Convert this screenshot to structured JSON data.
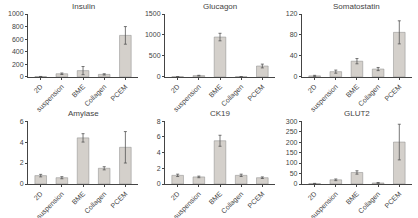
{
  "chart_data": [
    {
      "type": "bar",
      "title": "Insulin",
      "categories": [
        "2D",
        "suspension",
        "BME",
        "Collagen",
        "PCEM"
      ],
      "values": [
        5,
        50,
        100,
        40,
        660
      ],
      "errors": [
        2,
        12,
        65,
        10,
        140
      ],
      "ylim": [
        0,
        1000
      ],
      "yticks": [
        0,
        200,
        400,
        600,
        800,
        1000
      ],
      "color": "#d4d0cb",
      "grid": false
    },
    {
      "type": "bar",
      "title": "Glucagon",
      "categories": [
        "2D",
        "suspension",
        "BME",
        "Collagen",
        "PCEM"
      ],
      "values": [
        5,
        30,
        950,
        5,
        260
      ],
      "errors": [
        2,
        8,
        90,
        2,
        45
      ],
      "ylim": [
        0,
        1500
      ],
      "yticks": [
        0,
        500,
        1000,
        1500
      ],
      "color": "#d4d0cb",
      "grid": false
    },
    {
      "type": "bar",
      "title": "Somatostatin",
      "categories": [
        "2D",
        "suspension",
        "BME",
        "Collagen",
        "PCEM"
      ],
      "values": [
        2,
        10,
        30,
        15,
        85
      ],
      "errors": [
        1,
        3,
        5,
        3,
        22
      ],
      "ylim": [
        0,
        120
      ],
      "yticks": [
        0,
        40,
        80,
        120
      ],
      "color": "#d4d0cb",
      "grid": false
    },
    {
      "type": "bar",
      "title": "Amylase",
      "categories": [
        "2D",
        "suspension",
        "BME",
        "Collagen",
        "PCEM"
      ],
      "values": [
        0.8,
        0.6,
        4.4,
        1.5,
        3.5
      ],
      "errors": [
        0.12,
        0.1,
        0.4,
        0.15,
        1.5
      ],
      "ylim": [
        0,
        6
      ],
      "yticks": [
        0,
        2,
        4,
        6
      ],
      "color": "#d4d0cb",
      "grid": false
    },
    {
      "type": "bar",
      "title": "CK19",
      "categories": [
        "2D",
        "suspension",
        "BME",
        "Collagen",
        "PCEM"
      ],
      "values": [
        1.1,
        0.9,
        5.5,
        1.1,
        0.8
      ],
      "errors": [
        0.15,
        0.1,
        0.7,
        0.15,
        0.1
      ],
      "ylim": [
        0,
        8
      ],
      "yticks": [
        0,
        2,
        4,
        6,
        8
      ],
      "color": "#d4d0cb",
      "grid": false
    },
    {
      "type": "bar",
      "title": "GLUT2",
      "categories": [
        "2D",
        "suspension",
        "BME",
        "Collagen",
        "PCEM"
      ],
      "values": [
        2,
        20,
        55,
        5,
        200
      ],
      "errors": [
        1,
        4,
        8,
        2,
        85
      ],
      "ylim": [
        0,
        300
      ],
      "yticks": [
        0,
        50,
        100,
        150,
        200,
        250,
        300
      ],
      "color": "#d4d0cb",
      "grid": false
    }
  ]
}
